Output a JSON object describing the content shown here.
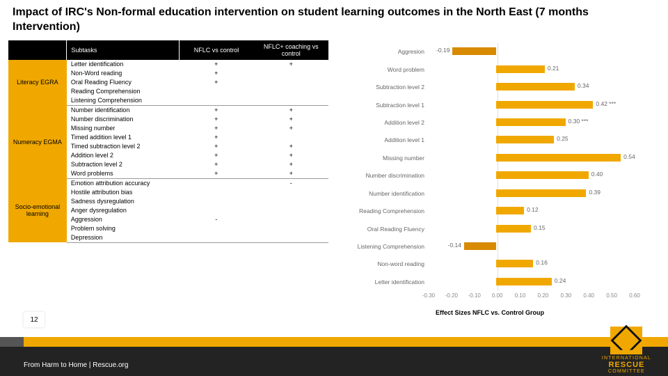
{
  "title": "Impact of IRC's Non-formal education intervention on student learning outcomes in the North East (7 months Intervention)",
  "table": {
    "headers": [
      "",
      "Subtasks",
      "NFLC vs control",
      "NFLC+ coaching vs control"
    ],
    "groups": [
      {
        "category": "Literacy EGRA",
        "rows": [
          {
            "label": "Letter identification",
            "c1": "+",
            "c2": "+"
          },
          {
            "label": "Non-Word reading",
            "c1": "+",
            "c2": ""
          },
          {
            "label": "Oral Reading Fluency",
            "c1": "+",
            "c2": ""
          },
          {
            "label": "Reading Comprehension",
            "c1": "",
            "c2": ""
          },
          {
            "label": "Listening Comprehension",
            "c1": "",
            "c2": ""
          }
        ]
      },
      {
        "category": "Numeracy EGMA",
        "rows": [
          {
            "label": "Number identification",
            "c1": "+",
            "c2": "+"
          },
          {
            "label": "Number discrimination",
            "c1": "+",
            "c2": "+"
          },
          {
            "label": "Missing number",
            "c1": "+",
            "c2": "+"
          },
          {
            "label": "Timed addition level 1",
            "c1": "+",
            "c2": ""
          },
          {
            "label": "Timed subtraction level 2",
            "c1": "+",
            "c2": "+"
          },
          {
            "label": "Addition level 2",
            "c1": "+",
            "c2": "+"
          },
          {
            "label": "Subtraction level 2",
            "c1": "+",
            "c2": "+"
          },
          {
            "label": "Word problems",
            "c1": "+",
            "c2": "+"
          }
        ]
      },
      {
        "category": "Socio-emotional learning",
        "rows": [
          {
            "label": "Emotion attribution accuracy",
            "c1": "",
            "c2": "-"
          },
          {
            "label": "Hostile attribution bias",
            "c1": "",
            "c2": ""
          },
          {
            "label": "Sadness dysregulation",
            "c1": "",
            "c2": ""
          },
          {
            "label": "Anger dysregulation",
            "c1": "",
            "c2": ""
          },
          {
            "label": "Aggression",
            "c1": "-",
            "c2": ""
          },
          {
            "label": "Problem solving",
            "c1": "",
            "c2": ""
          },
          {
            "label": "Depression",
            "c1": "",
            "c2": ""
          }
        ]
      }
    ]
  },
  "chart": {
    "type": "bar-horizontal",
    "xlim": [
      -0.3,
      0.6
    ],
    "xtick_step": 0.1,
    "bar_color_pos": "#f0a800",
    "bar_color_neg": "#d88a00",
    "background_color": "#ffffff",
    "grid_color": "#eeeeee",
    "label_fontsize": 8.5,
    "items": [
      {
        "label": "Aggresion",
        "value": -0.19,
        "sig": ""
      },
      {
        "label": "Word problem",
        "value": 0.21,
        "sig": ""
      },
      {
        "label": "Subtraction level 2",
        "value": 0.34,
        "sig": ""
      },
      {
        "label": "Subtraction level 1",
        "value": 0.42,
        "sig": "***"
      },
      {
        "label": "Addition level 2",
        "value": 0.3,
        "sig": "***"
      },
      {
        "label": "Addition level 1",
        "value": 0.25,
        "sig": ""
      },
      {
        "label": "Missing number",
        "value": 0.54,
        "sig": ""
      },
      {
        "label": "Number discrimination",
        "value": 0.4,
        "sig": ""
      },
      {
        "label": "Number identification",
        "value": 0.39,
        "sig": ""
      },
      {
        "label": "Reading Comprehension",
        "value": 0.12,
        "sig": ""
      },
      {
        "label": "Oral Reading Fluency",
        "value": 0.15,
        "sig": ""
      },
      {
        "label": "Listening Comprehension",
        "value": -0.14,
        "sig": ""
      },
      {
        "label": "Non-word reading",
        "value": 0.16,
        "sig": ""
      },
      {
        "label": "Letter identification",
        "value": 0.24,
        "sig": ""
      }
    ],
    "caption": "Effect Sizes NFLC vs. Control Group"
  },
  "footer": {
    "page": "12",
    "text": "From Harm to Home | Rescue.org",
    "logo_line1": "INTERNATIONAL",
    "logo_line2": "RESCUE",
    "logo_line3": "COMMITTEE"
  },
  "colors": {
    "accent": "#f0a800",
    "black": "#000000",
    "dark": "#232323"
  }
}
